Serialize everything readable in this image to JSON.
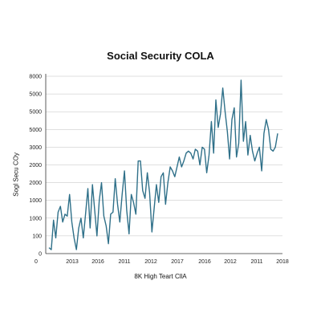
{
  "chart_data": {
    "type": "line",
    "title": "Social Security COLA",
    "xlabel": "8K High Teart CllA",
    "ylabel": "Sogl Secu COy",
    "y_tick_labels": [
      "0",
      "100",
      "1000",
      "1000",
      "2000",
      "2000",
      "3000",
      "5000",
      "5000",
      "5000",
      "8000"
    ],
    "x_tick_labels": [
      "0",
      "2013",
      "2016",
      "2011",
      "2012",
      "2017",
      "2016",
      "2012",
      "2011",
      "2018"
    ],
    "xlim": [
      0,
      100
    ],
    "ylim": [
      0,
      9000
    ],
    "grid": true,
    "colors": {
      "line": "#2f7089",
      "grid": "#bfbfbf"
    },
    "series": [
      {
        "x": [
          0,
          1,
          2,
          3,
          4,
          5,
          6,
          7,
          8,
          9,
          10,
          11,
          12,
          13,
          14,
          15,
          16,
          17,
          18,
          19,
          20,
          21,
          22,
          23,
          24,
          25,
          26,
          27,
          28,
          29,
          30,
          31,
          32,
          33,
          34,
          35,
          36,
          37,
          38,
          39,
          40,
          41,
          42,
          43,
          44,
          45,
          46,
          47,
          48,
          49,
          50,
          51,
          52,
          53,
          54,
          55,
          56,
          57,
          58,
          59,
          60,
          61,
          62,
          63,
          64,
          65,
          66,
          67,
          68,
          69,
          70,
          71,
          72,
          73,
          74,
          75,
          76,
          77,
          78,
          79,
          80,
          81,
          82,
          83,
          84,
          85,
          86,
          87,
          88,
          89,
          90,
          91,
          92,
          93,
          94,
          95,
          96,
          97,
          98,
          99,
          100
        ],
        "y": [
          300,
          200,
          1700,
          800,
          2100,
          2400,
          1600,
          2000,
          1900,
          3000,
          1600,
          800,
          200,
          1300,
          1800,
          800,
          2000,
          3300,
          1300,
          3500,
          2200,
          900,
          2700,
          3600,
          1900,
          1400,
          500,
          2000,
          2100,
          3800,
          2500,
          1600,
          3000,
          4200,
          2200,
          1000,
          3000,
          2600,
          2000,
          4700,
          4700,
          3200,
          2800,
          4100,
          3100,
          1100,
          2300,
          3500,
          2600,
          3900,
          4100,
          2500,
          3600,
          4400,
          4200,
          3900,
          4400,
          4900,
          4400,
          4700,
          5100,
          5200,
          5100,
          4800,
          5300,
          5200,
          4500,
          5400,
          5300,
          4100,
          5000,
          6700,
          5100,
          7800,
          6400,
          7100,
          8400,
          7200,
          6200,
          4800,
          6800,
          7400,
          4900,
          5600,
          8800,
          5700,
          6700,
          5000,
          6000,
          5200,
          4700,
          5100,
          5400,
          4200,
          6100,
          6800,
          6300,
          5300,
          5200,
          5400,
          6100
        ]
      }
    ]
  }
}
